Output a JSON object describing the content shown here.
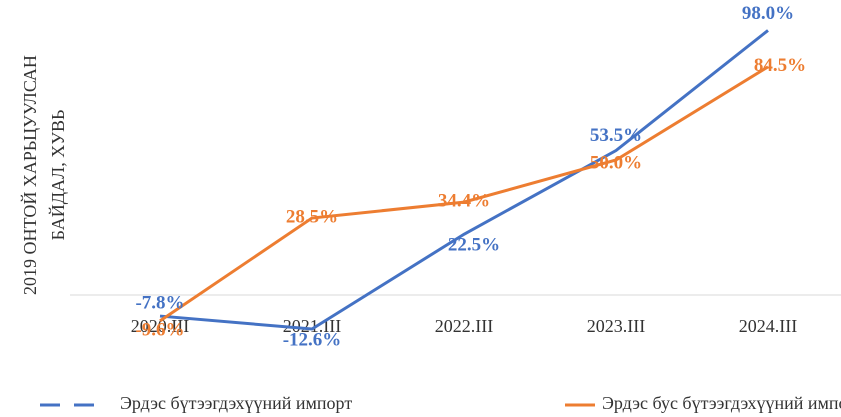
{
  "chart_data": {
    "type": "line",
    "ylabel": [
      "2019 ОНТОЙ ХАРЬЦУУЛСАН",
      "БАЙДАЛ, ХУВЬ"
    ],
    "categories": [
      "2020.III",
      "2021.III",
      "2022.III",
      "2023.III",
      "2024.III"
    ],
    "series": [
      {
        "name": "Эрдэс бүтээгдэхүүний импорт",
        "color": "#4472c4",
        "values": [
          -7.8,
          -12.6,
          22.5,
          53.5,
          98.0
        ],
        "value_labels": [
          "-7.8%",
          "-12.6%",
          "22.5%",
          "53.5%",
          "98.0%"
        ]
      },
      {
        "name": "Эрдэс бус бүтээгдэхүүний импорт",
        "color": "#ed7d31",
        "values": [
          -9.6,
          28.5,
          34.4,
          50.0,
          84.5
        ],
        "value_labels": [
          "-9.6%",
          "28.5%",
          "34.4%",
          "50.0%",
          "84.5%"
        ]
      }
    ],
    "ylim": [
      -20,
      100
    ]
  }
}
